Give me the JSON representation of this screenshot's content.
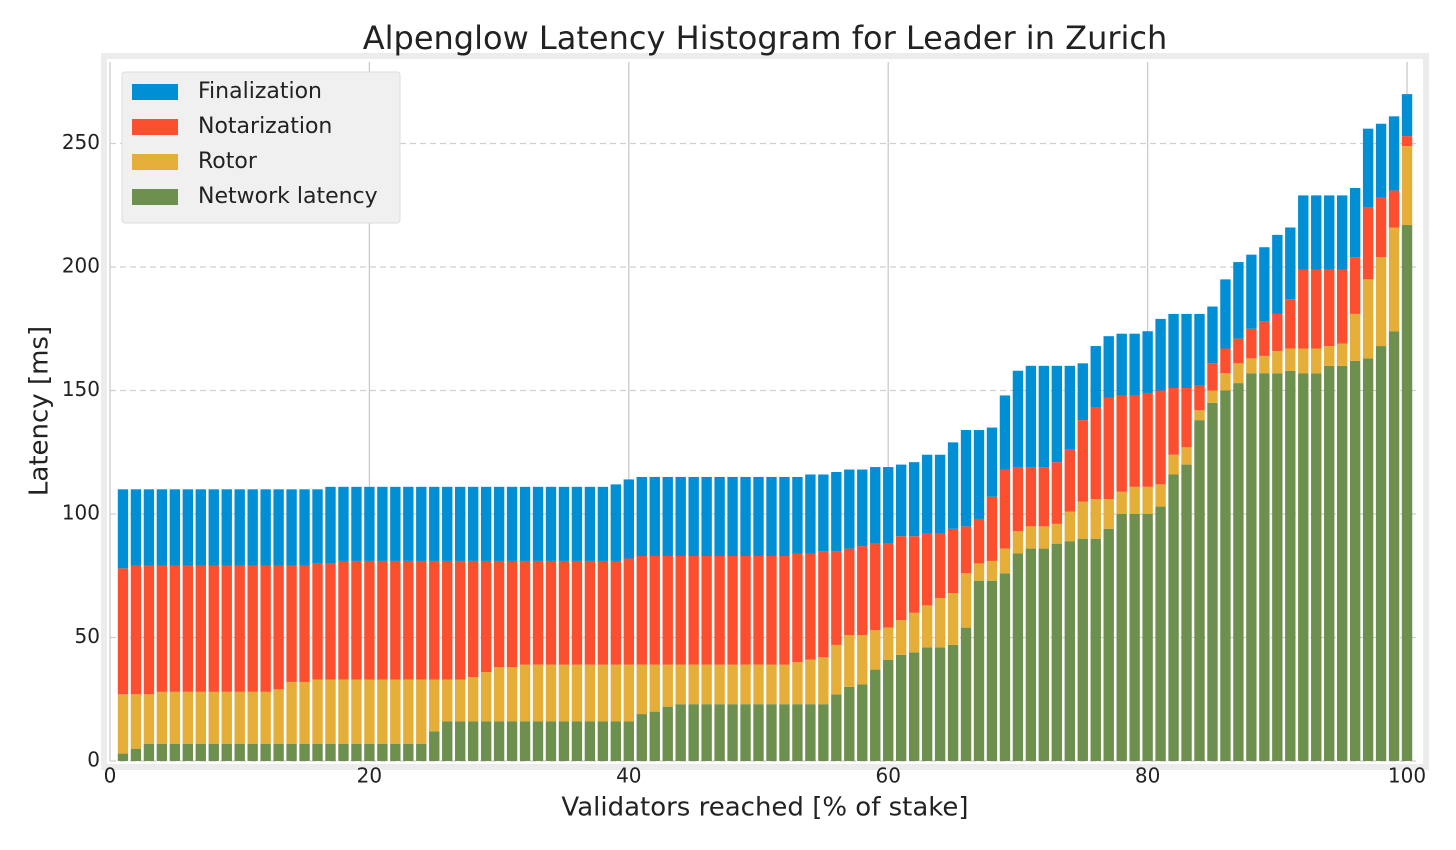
{
  "chart_data": {
    "type": "bar",
    "stacked": true,
    "title": "Alpenglow Latency Histogram for Leader in Zurich",
    "x_label": "Validators reached [% of stake]",
    "y_label": "Latency [ms]",
    "x": [
      1,
      2,
      3,
      4,
      5,
      6,
      7,
      8,
      9,
      10,
      11,
      12,
      13,
      14,
      15,
      16,
      17,
      18,
      19,
      20,
      21,
      22,
      23,
      24,
      25,
      26,
      27,
      28,
      29,
      30,
      31,
      32,
      33,
      34,
      35,
      36,
      37,
      38,
      39,
      40,
      41,
      42,
      43,
      44,
      45,
      46,
      47,
      48,
      49,
      50,
      51,
      52,
      53,
      54,
      55,
      56,
      57,
      58,
      59,
      60,
      61,
      62,
      63,
      64,
      65,
      66,
      67,
      68,
      69,
      70,
      71,
      72,
      73,
      74,
      75,
      76,
      77,
      78,
      79,
      80,
      81,
      82,
      83,
      84,
      85,
      86,
      87,
      88,
      89,
      90,
      91,
      92,
      93,
      94,
      95,
      96,
      97,
      98,
      99,
      100
    ],
    "series": [
      {
        "name": "Network latency",
        "color": "#6d904f",
        "values": [
          3,
          5,
          7,
          7,
          7,
          7,
          7,
          7,
          7,
          7,
          7,
          7,
          7,
          7,
          7,
          7,
          7,
          7,
          7,
          7,
          7,
          7,
          7,
          7,
          12,
          16,
          16,
          16,
          16,
          16,
          16,
          16,
          16,
          16,
          16,
          16,
          16,
          16,
          16,
          16,
          19,
          20,
          22,
          23,
          23,
          23,
          23,
          23,
          23,
          23,
          23,
          23,
          23,
          23,
          23,
          27,
          30,
          31,
          37,
          41,
          43,
          44,
          46,
          46,
          47,
          54,
          73,
          73,
          76,
          84,
          86,
          86,
          88,
          89,
          90,
          90,
          94,
          100,
          100,
          100,
          103,
          116,
          120,
          138,
          145,
          150,
          153,
          157,
          157,
          157,
          158,
          157,
          157,
          160,
          160,
          162,
          163,
          168,
          174,
          217
        ]
      },
      {
        "name": "Rotor",
        "color": "#e5ae38",
        "values": [
          24,
          22,
          20,
          21,
          21,
          21,
          21,
          21,
          21,
          21,
          21,
          21,
          22,
          25,
          25,
          26,
          26,
          26,
          26,
          26,
          26,
          26,
          26,
          26,
          21,
          17,
          17,
          18,
          20,
          22,
          22,
          23,
          23,
          23,
          23,
          23,
          23,
          23,
          23,
          23,
          20,
          19,
          17,
          16,
          16,
          16,
          16,
          16,
          16,
          16,
          16,
          16,
          17,
          18,
          19,
          20,
          21,
          20,
          16,
          13,
          14,
          16,
          17,
          20,
          21,
          22,
          7,
          8,
          10,
          9,
          9,
          9,
          8,
          12,
          15,
          16,
          12,
          9,
          11,
          11,
          9,
          8,
          7,
          4,
          5,
          7,
          8,
          6,
          7,
          9,
          9,
          10,
          10,
          8,
          9,
          19,
          32,
          36,
          42,
          32
        ]
      },
      {
        "name": "Notarization",
        "color": "#fc4f30",
        "values": [
          51,
          52,
          52,
          51,
          51,
          51,
          51,
          51,
          51,
          51,
          51,
          51,
          50,
          47,
          47,
          47,
          47,
          48,
          48,
          48,
          48,
          48,
          48,
          48,
          48,
          48,
          48,
          47,
          45,
          43,
          43,
          42,
          42,
          42,
          42,
          42,
          42,
          42,
          42,
          43,
          44,
          44,
          44,
          44,
          44,
          44,
          44,
          44,
          44,
          44,
          44,
          44,
          44,
          43,
          43,
          38,
          35,
          36,
          35,
          34,
          34,
          31,
          29,
          26,
          26,
          19,
          18,
          26,
          32,
          26,
          24,
          24,
          25,
          25,
          33,
          37,
          41,
          39,
          37,
          38,
          38,
          27,
          24,
          10,
          11,
          10,
          10,
          12,
          14,
          15,
          20,
          32,
          32,
          31,
          30,
          23,
          29,
          24,
          15,
          4
        ]
      },
      {
        "name": "Finalization",
        "color": "#008fd5",
        "values": [
          32,
          31,
          31,
          31,
          31,
          31,
          31,
          31,
          31,
          31,
          31,
          31,
          31,
          31,
          31,
          30,
          31,
          30,
          30,
          30,
          30,
          30,
          30,
          30,
          30,
          30,
          30,
          30,
          30,
          30,
          30,
          30,
          30,
          30,
          30,
          30,
          30,
          30,
          31,
          32,
          32,
          32,
          32,
          32,
          32,
          32,
          32,
          32,
          32,
          32,
          32,
          32,
          31,
          32,
          31,
          32,
          32,
          31,
          31,
          31,
          29,
          30,
          32,
          32,
          35,
          39,
          36,
          28,
          30,
          39,
          41,
          41,
          39,
          34,
          23,
          25,
          25,
          25,
          25,
          25,
          29,
          30,
          30,
          29,
          23,
          28,
          31,
          30,
          30,
          32,
          29,
          30,
          30,
          30,
          30,
          28,
          32,
          30,
          30,
          17
        ]
      }
    ],
    "xlim": [
      0,
      101
    ],
    "xticks": [
      0,
      20,
      40,
      60,
      80,
      100
    ],
    "ylim": [
      0,
      283
    ],
    "yticks": [
      0,
      50,
      100,
      150,
      200,
      250
    ],
    "grid": true,
    "legend": "upper left"
  }
}
